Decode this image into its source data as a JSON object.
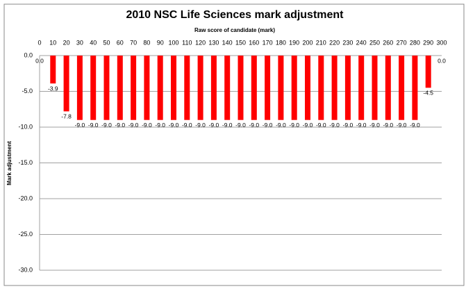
{
  "chart_data": {
    "type": "bar",
    "title": "2010 NSC Life Sciences mark adjustment",
    "x_label": "Raw score of  candidate (mark)",
    "y_label": "Mark adjustment",
    "categories": [
      "0",
      "10",
      "20",
      "30",
      "40",
      "50",
      "60",
      "70",
      "80",
      "90",
      "100",
      "110",
      "120",
      "130",
      "140",
      "150",
      "160",
      "170",
      "180",
      "190",
      "200",
      "210",
      "220",
      "230",
      "240",
      "250",
      "260",
      "270",
      "280",
      "290",
      "300"
    ],
    "values": [
      0,
      -3.9,
      -7.8,
      -9,
      -9,
      -9,
      -9,
      -9,
      -9,
      -9,
      -9,
      -9,
      -9,
      -9,
      -9,
      -9,
      -9,
      -9,
      -9,
      -9,
      -9,
      -9,
      -9,
      -9,
      -9,
      -9,
      -9,
      -9,
      -9,
      -4.5,
      0
    ],
    "value_labels": [
      "0.0",
      "-3.9",
      "-7.8",
      "-9.0",
      "-9.0",
      "-9.0",
      "-9.0",
      "-9.0",
      "-9.0",
      "-9.0",
      "-9.0",
      "-9.0",
      "-9.0",
      "-9.0",
      "-9.0",
      "-9.0",
      "-9.0",
      "-9.0",
      "-9.0",
      "-9.0",
      "-9.0",
      "-9.0",
      "-9.0",
      "-9.0",
      "-9.0",
      "-9.0",
      "-9.0",
      "-9.0",
      "-9.0",
      "-4.5",
      "0.0"
    ],
    "color": "#ff0000",
    "ylim": [
      -30,
      0
    ],
    "yticks": [
      {
        "value": 0,
        "label": "0.0"
      },
      {
        "value": -5,
        "label": "-5.0"
      },
      {
        "value": -10,
        "label": "-10.0"
      },
      {
        "value": -15,
        "label": "-15.0"
      },
      {
        "value": -20,
        "label": "-20.0"
      },
      {
        "value": -25,
        "label": "-25.0"
      },
      {
        "value": -30,
        "label": "-30.0"
      }
    ],
    "grid": true
  }
}
